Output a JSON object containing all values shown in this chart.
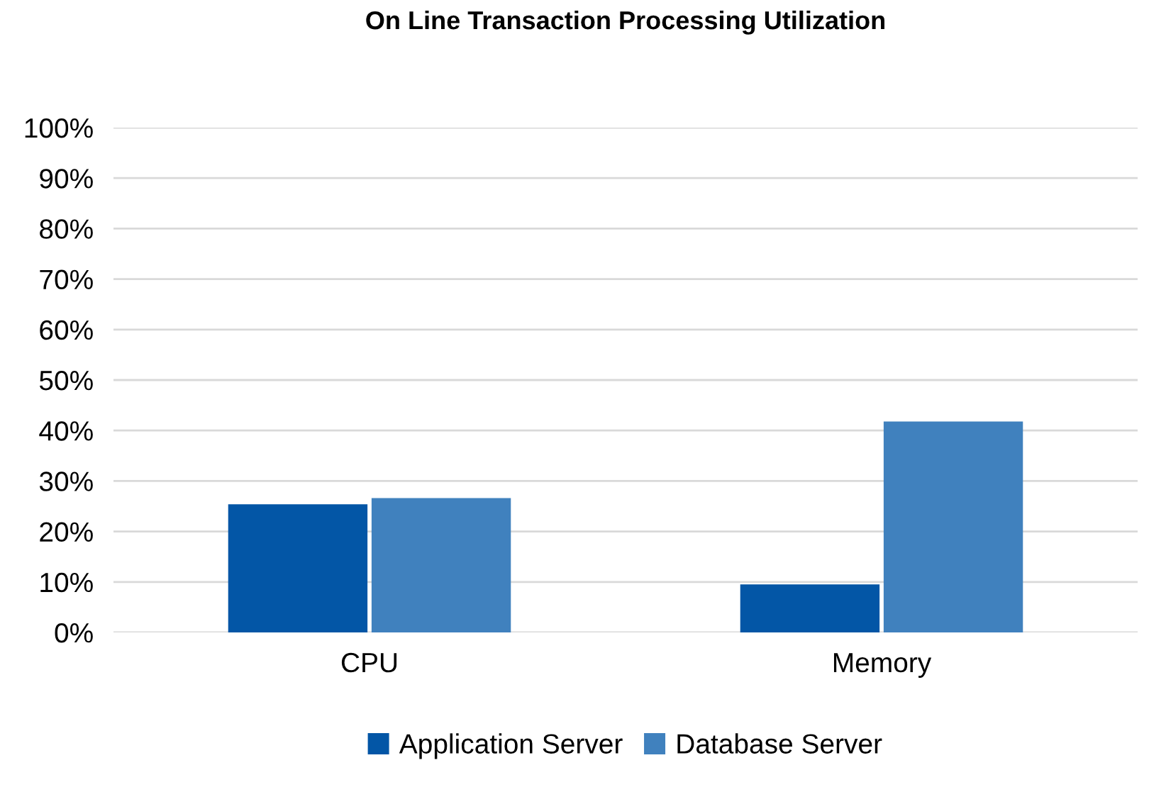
{
  "chart_data": {
    "type": "bar",
    "title": "On Line Transaction Processing Utilization",
    "categories": [
      "CPU",
      "Memory"
    ],
    "series": [
      {
        "name": "Application Server",
        "color": "#0356a6",
        "values": [
          25.4,
          9.5
        ]
      },
      {
        "name": "Database Server",
        "color": "#4081be",
        "values": [
          26.6,
          41.8
        ]
      }
    ],
    "ylim": [
      0,
      100
    ],
    "yticks": [
      {
        "value": 0,
        "label": "0%"
      },
      {
        "value": 10,
        "label": "10%"
      },
      {
        "value": 20,
        "label": "20%"
      },
      {
        "value": 30,
        "label": "30%"
      },
      {
        "value": 40,
        "label": "40%"
      },
      {
        "value": 50,
        "label": "50%"
      },
      {
        "value": 60,
        "label": "60%"
      },
      {
        "value": 70,
        "label": "70%"
      },
      {
        "value": 80,
        "label": "80%"
      },
      {
        "value": 90,
        "label": "90%"
      },
      {
        "value": 100,
        "label": "100%"
      }
    ],
    "grid": "y",
    "legend": "bottom"
  }
}
